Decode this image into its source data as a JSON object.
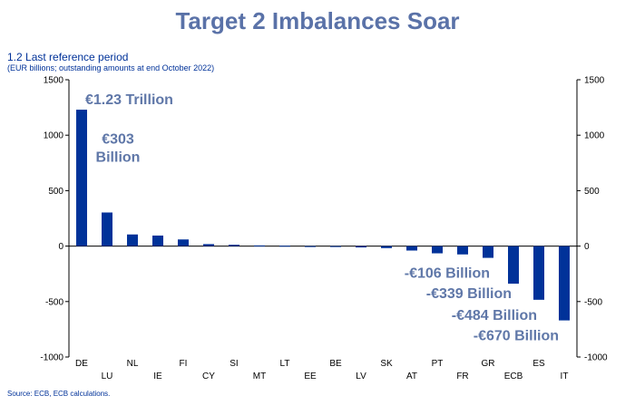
{
  "header": {
    "title": "Target 2 Imbalances Soar",
    "subtitle": "1.2 Last reference period",
    "note": "(EUR billions; outstanding amounts at end October 2022)",
    "source": "Source: ECB, ECB calculations."
  },
  "chart_data": {
    "type": "bar",
    "title": "Target 2 Imbalances Soar",
    "categories": [
      "DE",
      "LU",
      "NL",
      "IE",
      "FI",
      "CY",
      "SI",
      "MT",
      "LT",
      "EE",
      "BE",
      "LV",
      "SK",
      "AT",
      "PT",
      "FR",
      "GR",
      "ECB",
      "ES",
      "IT"
    ],
    "values": [
      1230,
      303,
      105,
      95,
      60,
      18,
      12,
      6,
      3,
      -3,
      -8,
      -12,
      -18,
      -40,
      -65,
      -75,
      -106,
      -339,
      -484,
      -670
    ],
    "ylim": [
      -1000,
      1500
    ],
    "yticks": [
      1500,
      1000,
      500,
      0,
      -500,
      -1000
    ],
    "ytick_labels": [
      "1500",
      "1000",
      "500",
      "0",
      "-500",
      "-1000"
    ],
    "xlabel": "",
    "ylabel": "",
    "bar_color": "#003299",
    "annotation_color": "#5f77a8",
    "annotations": [
      {
        "text": "€1.23 Trillion"
      },
      {
        "text": "€303"
      },
      {
        "text": "Billion"
      },
      {
        "text": "-€106 Billion"
      },
      {
        "text": "-€339 Billion"
      },
      {
        "text": "-€484 Billion"
      },
      {
        "text": "-€670 Billion"
      }
    ]
  }
}
